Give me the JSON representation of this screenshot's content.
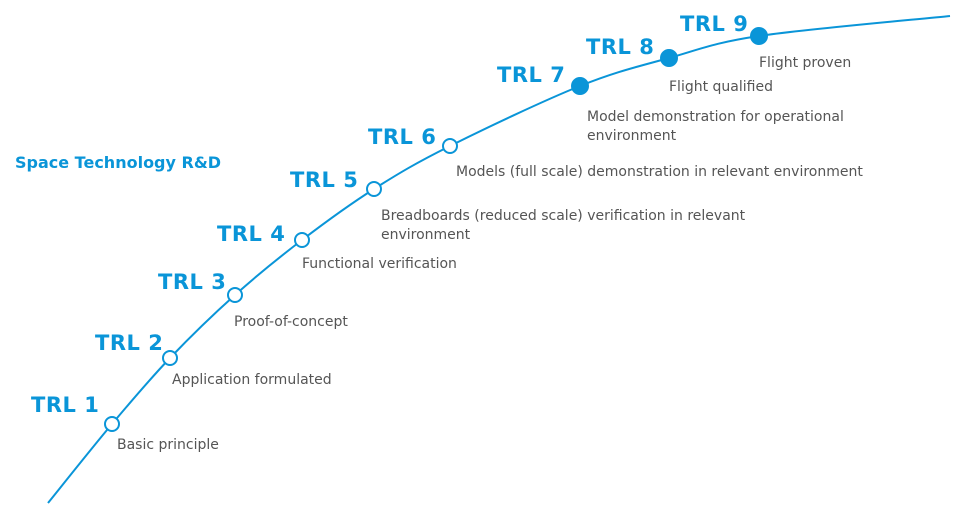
{
  "title": "Space Technology R&D",
  "accent_color": "#0a95d8",
  "levels": [
    {
      "label": "TRL 1",
      "description": "Basic principle",
      "filled": false
    },
    {
      "label": "TRL 2",
      "description": "Application formulated",
      "filled": false
    },
    {
      "label": "TRL 3",
      "description": "Proof-of-concept",
      "filled": false
    },
    {
      "label": "TRL 4",
      "description": "Functional verification",
      "filled": false
    },
    {
      "label": "TRL 5",
      "description": "Breadboards (reduced scale) verification in relevant environment",
      "filled": false
    },
    {
      "label": "TRL 6",
      "description": "Models (full scale) demonstration in relevant environment",
      "filled": false
    },
    {
      "label": "TRL 7",
      "description": "Model demonstration for operational environment",
      "filled": true
    },
    {
      "label": "TRL 8",
      "description": "Flight qualified",
      "filled": true
    },
    {
      "label": "TRL 9",
      "description": "Flight proven",
      "filled": true
    }
  ]
}
